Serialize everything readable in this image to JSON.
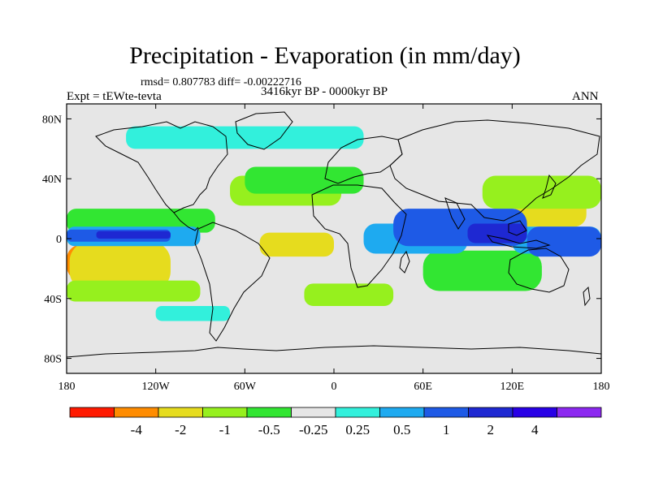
{
  "header": {
    "title": "Precipitation - Evaporation (in mm/day)",
    "stats": "rmsd= 0.807783 diff= -0.00222716",
    "experiment": "Expt = tEWte-tevta",
    "period": "3416kyr BP - 0000kyr BP",
    "season": "ANN"
  },
  "axes": {
    "lat_labels": [
      "80N",
      "40N",
      "0",
      "40S",
      "80S"
    ],
    "lat_values": [
      80,
      40,
      0,
      -40,
      -80
    ],
    "lon_labels": [
      "180",
      "120W",
      "60W",
      "0",
      "60E",
      "120E",
      "180"
    ],
    "lon_values": [
      -180,
      -120,
      -60,
      0,
      60,
      120,
      180
    ],
    "lat_range": [
      -90,
      90
    ],
    "lon_range": [
      -180,
      180
    ]
  },
  "colorbar": {
    "colors": [
      "#ff1a00",
      "#ff8c00",
      "#e6dc1e",
      "#96f01e",
      "#32e632",
      "#e6e6e6",
      "#32f0dc",
      "#1eaaf0",
      "#1e5ae6",
      "#1e28d2",
      "#2800e6",
      "#8c28f0"
    ],
    "labels": [
      "-4",
      "-2",
      "-1",
      "-0.5",
      "-0.25",
      "0.25",
      "0.5",
      "1",
      "2",
      "4"
    ]
  },
  "map": {
    "background": "#e6e6e6",
    "coastline_color": "#000000"
  },
  "chart_data": {
    "type": "heatmap",
    "title": "Precipitation - Evaporation (in mm/day)",
    "subtitle": "3416kyr BP - 0000kyr BP",
    "xlim": [
      -180,
      180
    ],
    "ylim": [
      -90,
      90
    ],
    "legend_placement": "bottom",
    "units": "mm/day",
    "contour_levels": [
      -4,
      -2,
      -1,
      -0.5,
      -0.25,
      0.25,
      0.5,
      1,
      2,
      4
    ],
    "anomaly_regions": [
      {
        "level_color": "#ff1a00",
        "lon": [
          -175,
          -150
        ],
        "lat": [
          -16,
          -8
        ]
      },
      {
        "level_color": "#ff8c00",
        "lon": [
          -180,
          -140
        ],
        "lat": [
          -28,
          -4
        ]
      },
      {
        "level_color": "#ff8c00",
        "lon": [
          -45,
          -10
        ],
        "lat": [
          -8,
          2
        ]
      },
      {
        "level_color": "#ff8c00",
        "lon": [
          132,
          168
        ],
        "lat": [
          12,
          22
        ]
      },
      {
        "level_color": "#e6dc1e",
        "lon": [
          -178,
          -110
        ],
        "lat": [
          -35,
          -2
        ]
      },
      {
        "level_color": "#e6dc1e",
        "lon": [
          -50,
          0
        ],
        "lat": [
          -12,
          4
        ]
      },
      {
        "level_color": "#e6dc1e",
        "lon": [
          122,
          170
        ],
        "lat": [
          8,
          28
        ]
      },
      {
        "level_color": "#96f01e",
        "lon": [
          -180,
          -90
        ],
        "lat": [
          -42,
          -28
        ]
      },
      {
        "level_color": "#96f01e",
        "lon": [
          -70,
          5
        ],
        "lat": [
          22,
          42
        ]
      },
      {
        "level_color": "#96f01e",
        "lon": [
          -20,
          40
        ],
        "lat": [
          -45,
          -30
        ]
      },
      {
        "level_color": "#96f01e",
        "lon": [
          100,
          180
        ],
        "lat": [
          20,
          42
        ]
      },
      {
        "level_color": "#32e632",
        "lon": [
          -180,
          -80
        ],
        "lat": [
          4,
          20
        ]
      },
      {
        "level_color": "#32e632",
        "lon": [
          -60,
          20
        ],
        "lat": [
          30,
          48
        ]
      },
      {
        "level_color": "#32e632",
        "lon": [
          60,
          140
        ],
        "lat": [
          -35,
          -8
        ]
      },
      {
        "level_color": "#1eaaf0",
        "lon": [
          -180,
          -90
        ],
        "lat": [
          -5,
          8
        ]
      },
      {
        "level_color": "#1eaaf0",
        "lon": [
          20,
          90
        ],
        "lat": [
          -10,
          10
        ]
      },
      {
        "level_color": "#1eaaf0",
        "lon": [
          120,
          180
        ],
        "lat": [
          -10,
          8
        ]
      },
      {
        "level_color": "#1e5ae6",
        "lon": [
          -180,
          -110
        ],
        "lat": [
          -2,
          6
        ]
      },
      {
        "level_color": "#1e5ae6",
        "lon": [
          40,
          130
        ],
        "lat": [
          -5,
          20
        ]
      },
      {
        "level_color": "#1e5ae6",
        "lon": [
          130,
          180
        ],
        "lat": [
          -12,
          8
        ]
      },
      {
        "level_color": "#1e28d2",
        "lon": [
          -160,
          -110
        ],
        "lat": [
          0,
          5
        ]
      },
      {
        "level_color": "#1e28d2",
        "lon": [
          90,
          130
        ],
        "lat": [
          -3,
          10
        ]
      },
      {
        "level_color": "#32f0dc",
        "lon": [
          -120,
          -70
        ],
        "lat": [
          -55,
          -45
        ]
      },
      {
        "level_color": "#32f0dc",
        "lon": [
          -140,
          20
        ],
        "lat": [
          60,
          75
        ]
      }
    ]
  }
}
